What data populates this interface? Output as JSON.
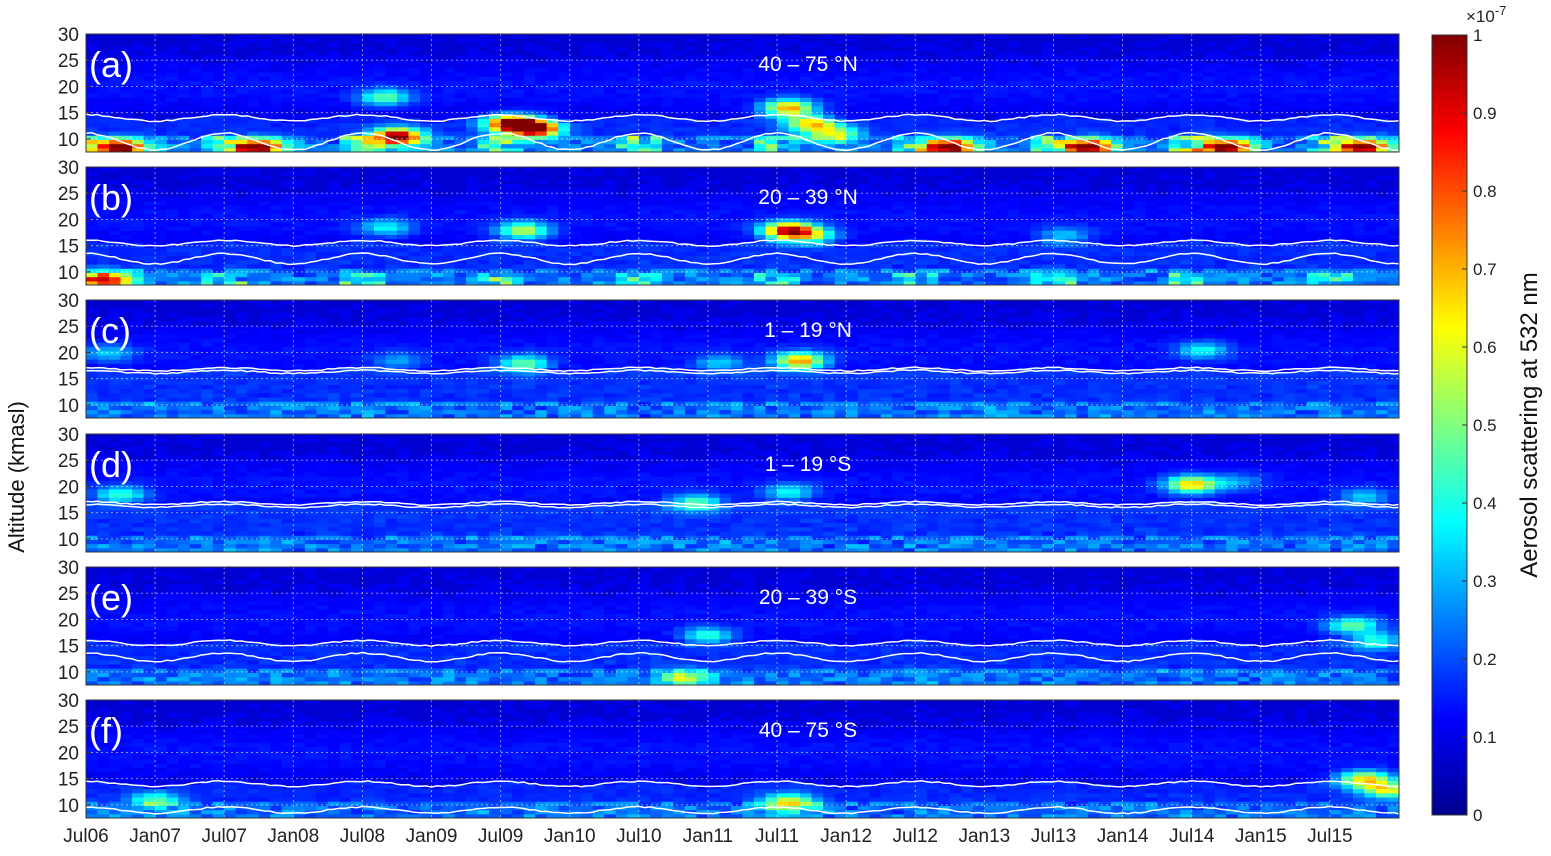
{
  "chart_data": {
    "type": "heatmap",
    "ylabel": "Altitude (kmasl)",
    "colorbar": {
      "label": "Aerosol scattering  at 532 nm",
      "exponent": "×10",
      "exponent_power": "-7",
      "ticks": [
        0,
        0.1,
        0.2,
        0.3,
        0.4,
        0.5,
        0.6,
        0.7,
        0.8,
        0.9,
        1
      ],
      "tick_labels": [
        "0",
        "0.1",
        "0.2",
        "0.3",
        "0.4",
        "0.5",
        "0.6",
        "0.7",
        "0.8",
        "0.9",
        "1"
      ],
      "range": [
        0,
        1
      ],
      "colormap": "jet"
    },
    "x_tick_labels": [
      "Jul06",
      "Jan07",
      "Jul07",
      "Jan08",
      "Jul08",
      "Jan09",
      "Jul09",
      "Jan10",
      "Jul10",
      "Jan11",
      "Jul11",
      "Jan12",
      "Jul12",
      "Jan13",
      "Jul13",
      "Jan14",
      "Jul14",
      "Jan15",
      "Jul15"
    ],
    "x_tick_months": [
      0,
      6,
      12,
      18,
      24,
      30,
      36,
      42,
      48,
      54,
      60,
      66,
      72,
      78,
      84,
      90,
      96,
      102,
      108
    ],
    "x_range_months": [
      0,
      114
    ],
    "y_ticks": [
      10,
      15,
      20,
      25,
      30
    ],
    "y_tick_labels": [
      "10",
      "15",
      "20",
      "25",
      "30"
    ],
    "ylim": [
      7.5,
      30
    ],
    "grid": true,
    "panels": [
      {
        "letter": "(a)",
        "band": "40 – 75 °N",
        "tropopause_upper_km": 14,
        "tropopause_lower_km": 9.5,
        "upper_amplitude": 0.6,
        "lower_amplitude": 1.6,
        "features": [
          {
            "month": 3,
            "alt_km": 8.5,
            "value": 0.95
          },
          {
            "month": 15,
            "alt_km": 8.5,
            "value": 0.95
          },
          {
            "month": 27,
            "alt_km": 10.5,
            "value": 1.0
          },
          {
            "month": 26,
            "alt_km": 18,
            "value": 0.45
          },
          {
            "month": 37,
            "alt_km": 13,
            "value": 1.0
          },
          {
            "month": 39,
            "alt_km": 12,
            "value": 0.95
          },
          {
            "month": 61,
            "alt_km": 16,
            "value": 0.7
          },
          {
            "month": 63,
            "alt_km": 13,
            "value": 0.6
          },
          {
            "month": 65,
            "alt_km": 11,
            "value": 0.5
          },
          {
            "month": 75,
            "alt_km": 8.5,
            "value": 0.95
          },
          {
            "month": 87,
            "alt_km": 8.5,
            "value": 0.95
          },
          {
            "month": 99,
            "alt_km": 8.5,
            "value": 0.95
          },
          {
            "month": 111,
            "alt_km": 8.5,
            "value": 0.9
          }
        ]
      },
      {
        "letter": "(b)",
        "band": "20 – 39 °N",
        "tropopause_upper_km": 15.5,
        "tropopause_lower_km": 12.5,
        "upper_amplitude": 0.5,
        "lower_amplitude": 1.0,
        "features": [
          {
            "month": 2,
            "alt_km": 8.5,
            "value": 0.75
          },
          {
            "month": 26,
            "alt_km": 18.5,
            "value": 0.35
          },
          {
            "month": 38,
            "alt_km": 18,
            "value": 0.55
          },
          {
            "month": 61,
            "alt_km": 18,
            "value": 0.9
          },
          {
            "month": 63,
            "alt_km": 17,
            "value": 0.45
          },
          {
            "month": 85,
            "alt_km": 17,
            "value": 0.3
          }
        ]
      },
      {
        "letter": "(c)",
        "band": "1 – 19 °N",
        "tropopause_upper_km": 16.8,
        "tropopause_lower_km": 16.3,
        "upper_amplitude": 0.3,
        "lower_amplitude": 0.3,
        "features": [
          {
            "month": 2,
            "alt_km": 20,
            "value": 0.3
          },
          {
            "month": 27,
            "alt_km": 18.5,
            "value": 0.25
          },
          {
            "month": 38,
            "alt_km": 18,
            "value": 0.45
          },
          {
            "month": 55,
            "alt_km": 18,
            "value": 0.3
          },
          {
            "month": 62,
            "alt_km": 18.5,
            "value": 0.7
          },
          {
            "month": 97,
            "alt_km": 20.5,
            "value": 0.35
          }
        ]
      },
      {
        "letter": "(d)",
        "band": "1 – 19 °S",
        "tropopause_upper_km": 16.8,
        "tropopause_lower_km": 16.3,
        "upper_amplitude": 0.3,
        "lower_amplitude": 0.3,
        "features": [
          {
            "month": 3,
            "alt_km": 18.5,
            "value": 0.4
          },
          {
            "month": 53,
            "alt_km": 17,
            "value": 0.45
          },
          {
            "month": 61,
            "alt_km": 19,
            "value": 0.35
          },
          {
            "month": 96,
            "alt_km": 20.5,
            "value": 0.65
          },
          {
            "month": 100,
            "alt_km": 21,
            "value": 0.25
          },
          {
            "month": 111,
            "alt_km": 18,
            "value": 0.3
          }
        ]
      },
      {
        "letter": "(e)",
        "band": "20 – 39 °S",
        "tropopause_upper_km": 15.5,
        "tropopause_lower_km": 12.8,
        "upper_amplitude": 0.5,
        "lower_amplitude": 0.8,
        "features": [
          {
            "month": 54,
            "alt_km": 17,
            "value": 0.4
          },
          {
            "month": 52,
            "alt_km": 9,
            "value": 0.45
          },
          {
            "month": 110,
            "alt_km": 19,
            "value": 0.45
          },
          {
            "month": 112,
            "alt_km": 16,
            "value": 0.4
          }
        ]
      },
      {
        "letter": "(f)",
        "band": "40 – 75 °S",
        "tropopause_upper_km": 14,
        "tropopause_lower_km": 9,
        "upper_amplitude": 0.5,
        "lower_amplitude": 0.6,
        "features": [
          {
            "month": 6,
            "alt_km": 11,
            "value": 0.4
          },
          {
            "month": 61,
            "alt_km": 10.5,
            "value": 0.6
          },
          {
            "month": 111,
            "alt_km": 15,
            "value": 0.65
          },
          {
            "month": 113,
            "alt_km": 13,
            "value": 0.55
          }
        ]
      }
    ]
  }
}
